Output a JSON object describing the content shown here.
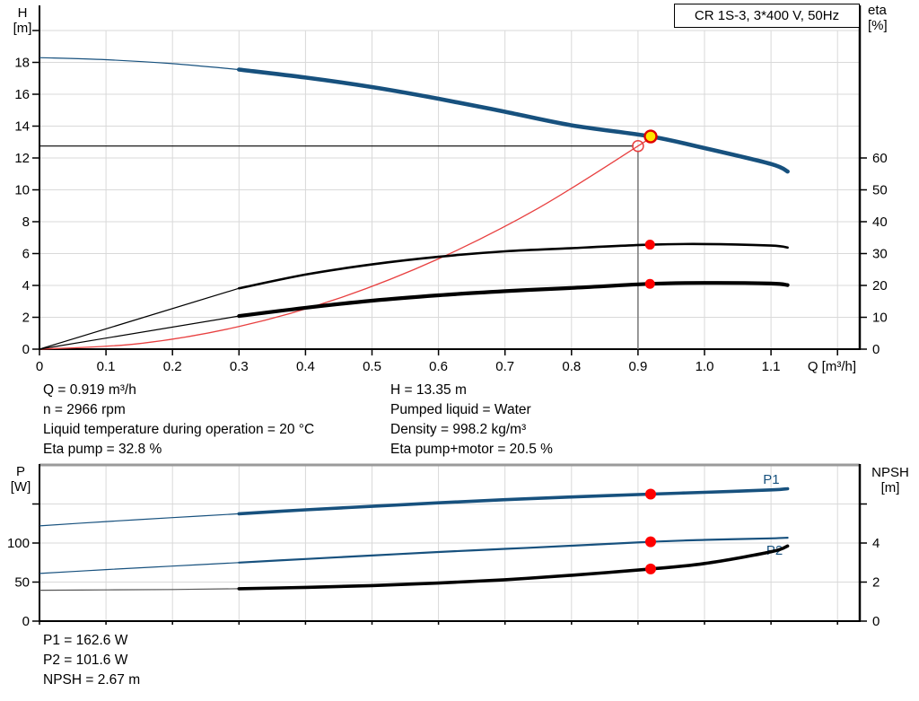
{
  "title_box": {
    "label": "CR 1S-3, 3*400 V, 50Hz"
  },
  "annotations": {
    "left": [
      "Q = 0.919 m³/h",
      "n = 2966 rpm",
      "Liquid temperature during operation = 20 °C",
      "Eta pump = 32.8 %"
    ],
    "right": [
      "H = 13.35 m",
      "Pumped liquid = Water",
      "Density = 998.2 kg/m³",
      "Eta pump+motor = 20.5 %"
    ],
    "footer": [
      "P1 = 162.6 W",
      "P2 = 101.6 W",
      "NPSH = 2.67 m"
    ]
  },
  "chart_data": [
    {
      "type": "line",
      "name": "hq-eta-chart",
      "x_axis": {
        "label": "Q [m³/h]",
        "min": 0,
        "max": 1.233,
        "tick_step": 0.1,
        "tick_count": 13,
        "tick_labels": [
          "0",
          "0.1",
          "0.2",
          "0.3",
          "0.4",
          "0.5",
          "0.6",
          "0.7",
          "0.8",
          "0.9",
          "1.0",
          "1.1"
        ]
      },
      "y_left": {
        "title_lines": [
          "H",
          "[m]"
        ],
        "min": 0,
        "max": 20,
        "tick_step": 2,
        "tick_count": 11,
        "tick_labels": [
          "0",
          "2",
          "4",
          "6",
          "8",
          "10",
          "12",
          "14",
          "16",
          "18"
        ]
      },
      "y_right": {
        "title_lines": [
          "eta",
          "[%]"
        ],
        "min": 0,
        "max": 100,
        "tick_step": 10,
        "tick_count": 7,
        "tick_labels": [
          "0",
          "10",
          "20",
          "30",
          "40",
          "50",
          "60"
        ]
      },
      "crosshair": {
        "q": 0.9,
        "h": 12.75
      },
      "series": [
        {
          "name": "system-curve",
          "label": "System curve",
          "axis": "left",
          "color": "#e84040",
          "width": 1.3,
          "points": [
            [
              0,
              0
            ],
            [
              0.15,
              0.35
            ],
            [
              0.3,
              1.42
            ],
            [
              0.45,
              3.19
            ],
            [
              0.6,
              5.67
            ],
            [
              0.75,
              8.85
            ],
            [
              0.9,
              12.75
            ],
            [
              0.919,
              13.3
            ]
          ]
        },
        {
          "name": "eta-pump-curve",
          "label": "Eta pump",
          "axis": "right",
          "color": "#000000",
          "width": 2.6,
          "thin_until": 0.3,
          "points": [
            [
              0,
              0
            ],
            [
              0.3,
              19.1
            ],
            [
              0.4,
              23.4
            ],
            [
              0.5,
              26.6
            ],
            [
              0.6,
              29.0
            ],
            [
              0.7,
              30.7
            ],
            [
              0.8,
              31.7
            ],
            [
              0.919,
              32.8
            ],
            [
              1.0,
              33.0
            ],
            [
              1.1,
              32.5
            ],
            [
              1.125,
              31.9
            ]
          ]
        },
        {
          "name": "eta-pump-motor-curve",
          "label": "Eta pump+motor",
          "axis": "right",
          "color": "#000000",
          "width": 4.2,
          "thin_until": 0.3,
          "points": [
            [
              0,
              0
            ],
            [
              0.3,
              10.4
            ],
            [
              0.4,
              13.0
            ],
            [
              0.5,
              15.2
            ],
            [
              0.6,
              16.9
            ],
            [
              0.7,
              18.2
            ],
            [
              0.8,
              19.2
            ],
            [
              0.919,
              20.5
            ],
            [
              1.0,
              20.8
            ],
            [
              1.1,
              20.6
            ],
            [
              1.125,
              20.1
            ]
          ]
        },
        {
          "name": "pump-curve",
          "label": "H",
          "axis": "left",
          "color": "#17517e",
          "width": 4.6,
          "thin_until": 0.3,
          "points": [
            [
              0,
              18.3
            ],
            [
              0.1,
              18.17
            ],
            [
              0.2,
              17.92
            ],
            [
              0.3,
              17.55
            ],
            [
              0.4,
              17.05
            ],
            [
              0.5,
              16.45
            ],
            [
              0.6,
              15.72
            ],
            [
              0.7,
              14.9
            ],
            [
              0.8,
              14.05
            ],
            [
              0.919,
              13.35
            ],
            [
              1.0,
              12.62
            ],
            [
              1.1,
              11.62
            ],
            [
              1.125,
              11.15
            ]
          ]
        }
      ],
      "markers": [
        {
          "name": "requested-duty-point",
          "axis": "left",
          "q": 0.9,
          "v": 12.75,
          "r": 6,
          "fill": "none",
          "stroke": "#e84040",
          "stroke_w": 1.5
        },
        {
          "name": "eta-pump-point",
          "axis": "right",
          "q": 0.918,
          "v": 32.8,
          "r": 5.5,
          "fill": "#ff0000"
        },
        {
          "name": "eta-pump-motor-point",
          "axis": "right",
          "q": 0.918,
          "v": 20.5,
          "r": 5.5,
          "fill": "#ff0000"
        },
        {
          "name": "duty-point",
          "axis": "left",
          "q": 0.919,
          "v": 13.35,
          "r": 6.5,
          "fill": "#ffe500",
          "stroke": "#e00000",
          "stroke_w": 2.4
        }
      ]
    },
    {
      "type": "line",
      "name": "power-npsh-chart",
      "x_axis": {
        "label": "",
        "min": 0,
        "max": 1.233,
        "tick_step": 0.1,
        "tick_count": 13,
        "tick_labels": []
      },
      "y_left": {
        "title_lines": [
          "P",
          "[W]"
        ],
        "min": 0,
        "max": 200,
        "tick_step": 50,
        "tick_count": 4,
        "tick_labels": [
          "0",
          "50",
          "100"
        ]
      },
      "y_right": {
        "title_lines": [
          "NPSH",
          "[m]"
        ],
        "min": 0,
        "max": 8,
        "tick_step": 2,
        "tick_count": 4,
        "tick_labels": [
          "0",
          "2",
          "4"
        ]
      },
      "top_border_color": "#9a9a9a",
      "curve_labels": [
        {
          "text": "P1",
          "q": 1.088,
          "v": 176,
          "axis": "left",
          "color": "#17517e"
        },
        {
          "text": "P2",
          "q": 1.093,
          "v": 85,
          "axis": "left",
          "color": "#17517e"
        }
      ],
      "series": [
        {
          "name": "p1-curve",
          "label": "P1",
          "axis": "left",
          "color": "#17517e",
          "width": 3.6,
          "thin_until": 0.3,
          "points": [
            [
              0,
              122
            ],
            [
              0.1,
              127.5
            ],
            [
              0.2,
              132.5
            ],
            [
              0.3,
              137.5
            ],
            [
              0.4,
              142.5
            ],
            [
              0.5,
              147
            ],
            [
              0.6,
              151.5
            ],
            [
              0.7,
              155.5
            ],
            [
              0.8,
              159
            ],
            [
              0.919,
              162.6
            ],
            [
              1.0,
              165
            ],
            [
              1.1,
              168
            ],
            [
              1.125,
              169.5
            ]
          ]
        },
        {
          "name": "p2-curve",
          "label": "P2",
          "axis": "left",
          "color": "#17517e",
          "width": 2.2,
          "thin_until": 0.3,
          "points": [
            [
              0,
              61
            ],
            [
              0.1,
              66
            ],
            [
              0.2,
              70.5
            ],
            [
              0.3,
              75
            ],
            [
              0.4,
              79.5
            ],
            [
              0.5,
              84
            ],
            [
              0.6,
              88.5
            ],
            [
              0.7,
              92.5
            ],
            [
              0.8,
              96.5
            ],
            [
              0.919,
              101.6
            ],
            [
              1.0,
              104
            ],
            [
              1.1,
              106
            ],
            [
              1.125,
              106.8
            ]
          ]
        },
        {
          "name": "npsh-curve",
          "label": "NPSH",
          "axis": "right",
          "color": "#000000",
          "width": 3.6,
          "thin_until": 0.3,
          "thin_color": "#555555",
          "points": [
            [
              0,
              1.58
            ],
            [
              0.1,
              1.6
            ],
            [
              0.2,
              1.62
            ],
            [
              0.3,
              1.66
            ],
            [
              0.4,
              1.73
            ],
            [
              0.5,
              1.82
            ],
            [
              0.6,
              1.95
            ],
            [
              0.7,
              2.12
            ],
            [
              0.8,
              2.35
            ],
            [
              0.919,
              2.67
            ],
            [
              1.0,
              2.95
            ],
            [
              1.1,
              3.55
            ],
            [
              1.125,
              3.85
            ]
          ]
        }
      ],
      "markers": [
        {
          "name": "p1-point",
          "axis": "left",
          "q": 0.919,
          "v": 162.6,
          "r": 6,
          "fill": "#ff0000"
        },
        {
          "name": "p2-point",
          "axis": "left",
          "q": 0.919,
          "v": 101.6,
          "r": 6,
          "fill": "#ff0000"
        },
        {
          "name": "npsh-point",
          "axis": "right",
          "q": 0.919,
          "v": 2.67,
          "r": 6,
          "fill": "#ff0000"
        }
      ]
    }
  ]
}
